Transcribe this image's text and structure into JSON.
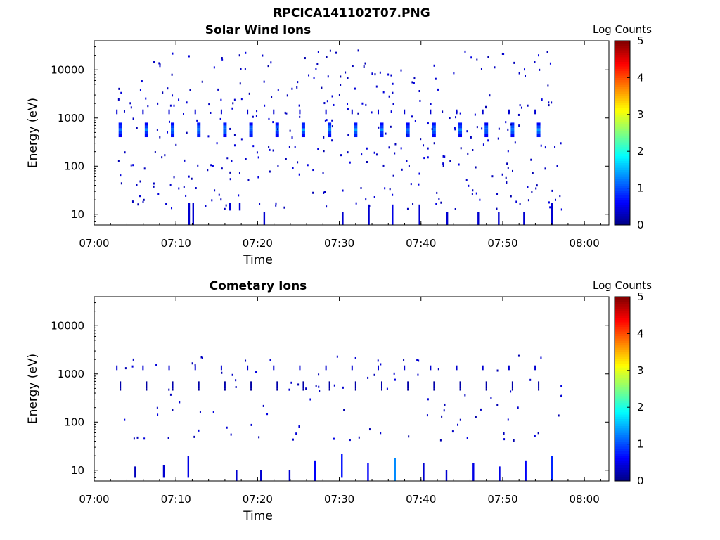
{
  "figure": {
    "title": "RPCICA141102T07.PNG"
  },
  "chart_data": [
    {
      "type": "heatmap",
      "title": "Solar Wind Ions",
      "xlabel": "Time",
      "ylabel": "Energy (eV)",
      "yscale": "log",
      "ylim": [
        6,
        40000
      ],
      "xlim": [
        "07:00",
        "08:03"
      ],
      "x_ticks": [
        "07:00",
        "07:10",
        "07:20",
        "07:30",
        "07:40",
        "07:50",
        "08:00"
      ],
      "y_ticks": [
        "10",
        "100",
        "1000",
        "10000"
      ],
      "colorbar": {
        "title": "Log Counts",
        "range": [
          0,
          5
        ],
        "ticks": [
          "0",
          "1",
          "2",
          "3",
          "4",
          "5"
        ],
        "colormap": "jet"
      },
      "scan_times_min": [
        3.2,
        6.4,
        9.6,
        12.8,
        16.0,
        19.2,
        22.4,
        25.6,
        28.8,
        32.0,
        35.2,
        38.4,
        41.6,
        44.8,
        48.0,
        51.2,
        54.4
      ],
      "main_beam": {
        "energy_min_eV": 400,
        "energy_max_eV": 800,
        "peak_log_counts": 1.5
      },
      "low_energy_spikes": [
        {
          "t_min": 11.6,
          "e_min": 6,
          "e_max": 17,
          "log_counts": 0.4
        },
        {
          "t_min": 12.1,
          "e_min": 6,
          "e_max": 17,
          "log_counts": 0.4
        },
        {
          "t_min": 16.6,
          "e_min": 12,
          "e_max": 17,
          "log_counts": 0.4
        },
        {
          "t_min": 17.8,
          "e_min": 12,
          "e_max": 17,
          "log_counts": 0.4
        },
        {
          "t_min": 20.8,
          "e_min": 6,
          "e_max": 11,
          "log_counts": 0.4
        },
        {
          "t_min": 30.4,
          "e_min": 6,
          "e_max": 11,
          "log_counts": 0.4
        },
        {
          "t_min": 33.6,
          "e_min": 6,
          "e_max": 16,
          "log_counts": 0.4
        },
        {
          "t_min": 36.5,
          "e_min": 6,
          "e_max": 16,
          "log_counts": 0.5
        },
        {
          "t_min": 39.8,
          "e_min": 6,
          "e_max": 16,
          "log_counts": 0.4
        },
        {
          "t_min": 43.2,
          "e_min": 6,
          "e_max": 11,
          "log_counts": 0.4
        },
        {
          "t_min": 47.0,
          "e_min": 6,
          "e_max": 11,
          "log_counts": 0.4
        },
        {
          "t_min": 49.5,
          "e_min": 6,
          "e_max": 11,
          "log_counts": 0.4
        },
        {
          "t_min": 52.6,
          "e_min": 6,
          "e_max": 11,
          "log_counts": 0.4
        },
        {
          "t_min": 56.0,
          "e_min": 6,
          "e_max": 17,
          "log_counts": 0.4
        }
      ]
    },
    {
      "type": "heatmap",
      "title": "Cometary Ions",
      "xlabel": "Time",
      "ylabel": "Energy (eV)",
      "yscale": "log",
      "ylim": [
        6,
        40000
      ],
      "xlim": [
        "07:00",
        "08:03"
      ],
      "x_ticks": [
        "07:00",
        "07:10",
        "07:20",
        "07:30",
        "07:40",
        "07:50",
        "08:00"
      ],
      "y_ticks": [
        "10",
        "100",
        "1000",
        "10000"
      ],
      "colorbar": {
        "title": "Log Counts",
        "range": [
          0,
          5
        ],
        "ticks": [
          "0",
          "1",
          "2",
          "3",
          "4",
          "5"
        ],
        "colormap": "jet"
      },
      "scan_times_min": [
        3.2,
        6.4,
        9.6,
        12.8,
        16.0,
        19.2,
        22.4,
        25.6,
        28.8,
        32.0,
        35.2,
        38.4,
        41.6,
        44.8,
        48.0,
        51.2,
        54.4
      ],
      "main_beam": {
        "energy_min_eV": 450,
        "energy_max_eV": 700,
        "peak_log_counts": 0.3
      },
      "low_energy_spikes": [
        {
          "t_min": 5.0,
          "e_min": 7,
          "e_max": 12,
          "log_counts": 0.3
        },
        {
          "t_min": 8.5,
          "e_min": 7,
          "e_max": 13,
          "log_counts": 0.4
        },
        {
          "t_min": 11.5,
          "e_min": 7,
          "e_max": 20,
          "log_counts": 0.5
        },
        {
          "t_min": 17.4,
          "e_min": 6,
          "e_max": 10,
          "log_counts": 0.4
        },
        {
          "t_min": 20.4,
          "e_min": 6,
          "e_max": 10,
          "log_counts": 0.4
        },
        {
          "t_min": 23.9,
          "e_min": 6,
          "e_max": 10,
          "log_counts": 0.4
        },
        {
          "t_min": 27.0,
          "e_min": 6,
          "e_max": 16,
          "log_counts": 0.6
        },
        {
          "t_min": 30.3,
          "e_min": 7,
          "e_max": 22,
          "log_counts": 0.7
        },
        {
          "t_min": 33.5,
          "e_min": 6,
          "e_max": 14,
          "log_counts": 0.6
        },
        {
          "t_min": 36.8,
          "e_min": 6,
          "e_max": 18,
          "log_counts": 1.3
        },
        {
          "t_min": 40.3,
          "e_min": 6,
          "e_max": 14,
          "log_counts": 0.4
        },
        {
          "t_min": 43.1,
          "e_min": 6,
          "e_max": 10,
          "log_counts": 0.4
        },
        {
          "t_min": 46.4,
          "e_min": 6,
          "e_max": 14,
          "log_counts": 0.5
        },
        {
          "t_min": 49.6,
          "e_min": 6,
          "e_max": 12,
          "log_counts": 0.5
        },
        {
          "t_min": 52.8,
          "e_min": 6,
          "e_max": 16,
          "log_counts": 0.6
        },
        {
          "t_min": 56.0,
          "e_min": 6,
          "e_max": 20,
          "log_counts": 0.8
        }
      ]
    }
  ]
}
